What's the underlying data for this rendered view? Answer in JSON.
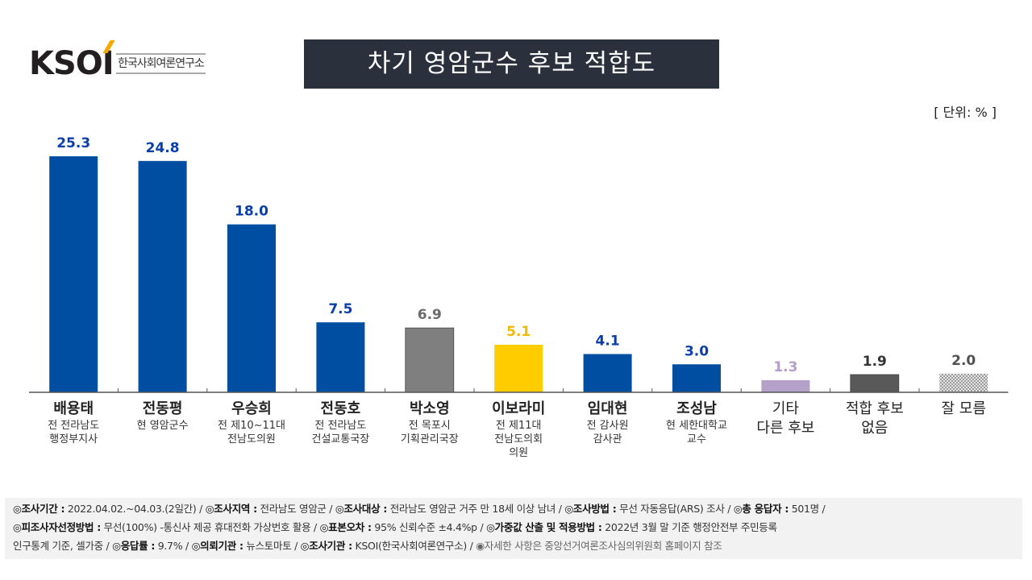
{
  "logo": {
    "brand": "KSOI",
    "subtitle": "한국사회여론연구소"
  },
  "title": "차기 영암군수 후보 적합도",
  "unit_label": "[ 단위: % ]",
  "chart_data": {
    "type": "bar",
    "title": "차기 영암군수 후보 적합도",
    "xlabel": "",
    "ylabel": "%",
    "ylim": [
      0,
      30
    ],
    "grid": false,
    "categories": [
      "배용태",
      "전동평",
      "우승희",
      "전동호",
      "박소영",
      "이보라미",
      "임대현",
      "조성남",
      "기타 다른 후보",
      "적합 후보 없음",
      "잘 모름"
    ],
    "descriptions": [
      "전 전라남도\n행정부지사",
      "현 영암군수",
      "전 제10~11대\n전남도의원",
      "전 전라남도\n건설교통국장",
      "전 목포시\n기획관리국장",
      "전 제11대\n전남도의회\n의원",
      "전 감사원\n감사관",
      "현 세한대학교\n교수",
      "",
      "",
      ""
    ],
    "category_lines": [
      [
        "배용태"
      ],
      [
        "전동평"
      ],
      [
        "우승희"
      ],
      [
        "전동호"
      ],
      [
        "박소영"
      ],
      [
        "이보라미"
      ],
      [
        "임대현"
      ],
      [
        "조성남"
      ],
      [
        "기타",
        "다른 후보"
      ],
      [
        "적합 후보",
        "없음"
      ],
      [
        "잘 모름"
      ]
    ],
    "values": [
      25.3,
      24.8,
      18.0,
      7.5,
      6.9,
      5.1,
      4.1,
      3.0,
      1.3,
      1.9,
      2.0
    ],
    "labels": [
      "25.3",
      "24.8",
      "18.0",
      "7.5",
      "6.9",
      "5.1",
      "4.1",
      "3.0",
      "1.3",
      "1.9",
      "2.0"
    ],
    "colors": [
      "#004ea2",
      "#004ea2",
      "#004ea2",
      "#004ea2",
      "#7f7f7f",
      "#ffcc00",
      "#004ea2",
      "#004ea2",
      "#b4a0c8",
      "#595959",
      "#c8c8c8"
    ],
    "label_colors": [
      "#0a3fa8",
      "#0a3fa8",
      "#0a3fa8",
      "#0a3fa8",
      "#6b6b6b",
      "#f5b800",
      "#0a3fa8",
      "#0a3fa8",
      "#b49ccc",
      "#333333",
      "#505050"
    ],
    "patterns": [
      "solid",
      "solid",
      "solid",
      "solid",
      "solid",
      "solid",
      "solid",
      "solid",
      "solid",
      "solid",
      "checker"
    ],
    "bold_names": [
      true,
      true,
      true,
      true,
      true,
      true,
      true,
      true,
      false,
      false,
      false
    ]
  },
  "footer": {
    "line1": [
      {
        "k": "◎조사기간 :",
        "v": " 2022.04.02.~04.03.(2일간) / "
      },
      {
        "k": "◎조사지역 :",
        "v": " 전라남도 영암군 / "
      },
      {
        "k": "◎조사대상 :",
        "v": " 전라남도 영암군 거주 만 18세 이상 남녀 / "
      },
      {
        "k": "◎조사방법 :",
        "v": " 무선 자동응답(ARS) 조사 / "
      },
      {
        "k": "◎총 응답자 :",
        "v": " 501명 /"
      }
    ],
    "line2": [
      {
        "k": "◎피조사자선정방법 :",
        "v": " 무선(100%) -통신사 제공 휴대전화 가상번호 활용 / "
      },
      {
        "k": "◎표본오차 :",
        "v": " 95% 신뢰수준 ±4.4%p / "
      },
      {
        "k": "◎가중값 산출 및 적용방법 :",
        "v": " 2022년 3월 말 기준 행정안전부 주민등록"
      }
    ],
    "line3": [
      {
        "k": "",
        "v": "인구통계 기준, 셀가중 / "
      },
      {
        "k": "◎응답률 :",
        "v": " 9.7% / "
      },
      {
        "k": "◎의뢰기관 :",
        "v": " 뉴스토마토 / "
      },
      {
        "k": "◎조사기관 :",
        "v": " KSOI(한국사회여론연구소) / "
      }
    ],
    "note": "◉자세한 사항은 중앙선거여론조사심의위원회 홈페이지 참조"
  }
}
